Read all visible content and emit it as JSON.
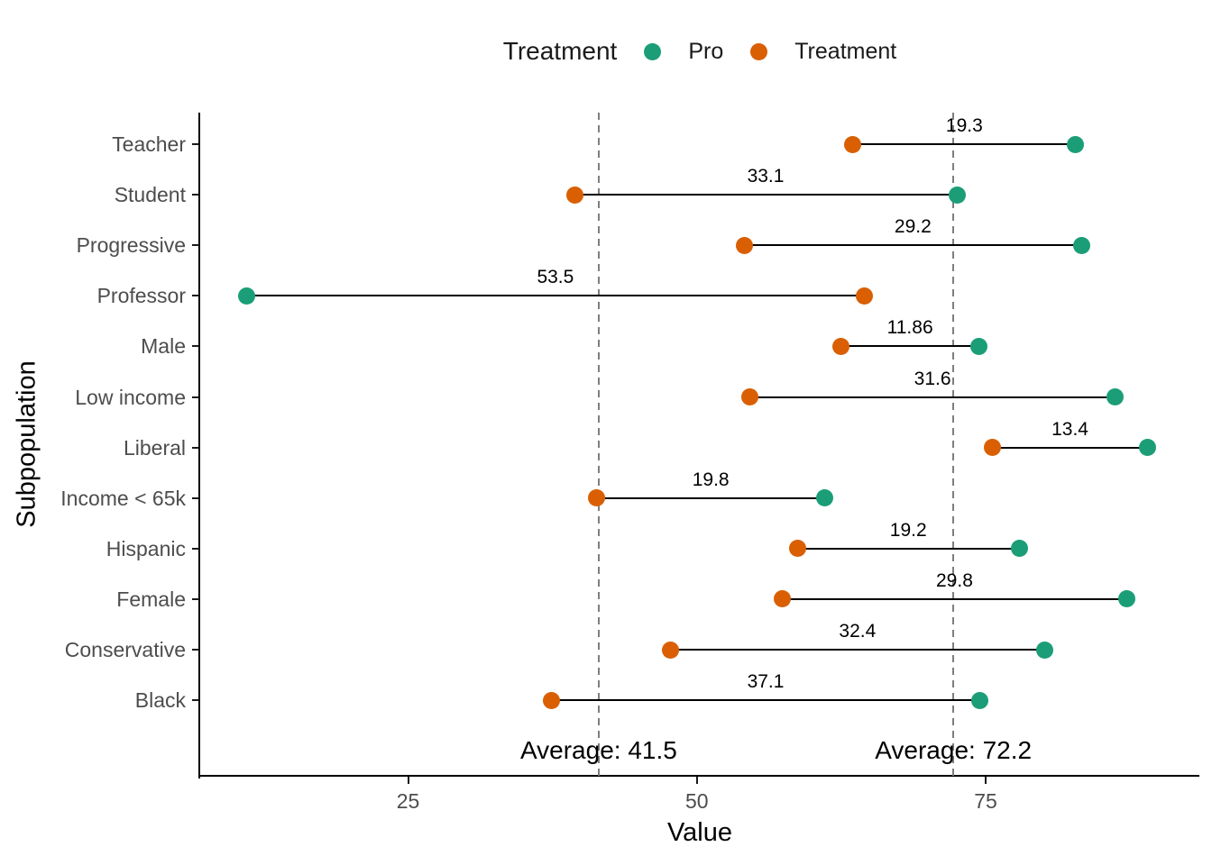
{
  "legend": {
    "title": "Treatment",
    "items": [
      {
        "label": "Pro",
        "color": "#1B9E77"
      },
      {
        "label": "Treatment",
        "color": "#D95F02"
      }
    ]
  },
  "axes": {
    "x_title": "Value",
    "y_title": "Subpopulation",
    "x_tick_labels": [
      "25",
      "50",
      "75"
    ]
  },
  "chart_data": {
    "type": "scatter",
    "subtype": "dumbbell",
    "title": "",
    "xlabel": "Value",
    "ylabel": "Subpopulation",
    "xlim": [
      7,
      93.5
    ],
    "xticks": [
      25,
      50,
      75
    ],
    "grid": false,
    "legend_position": "top-center",
    "categories": [
      "Teacher",
      "Student",
      "Progressive",
      "Professor",
      "Male",
      "Low income",
      "Liberal",
      "Income < 65k",
      "Hispanic",
      "Female",
      "Conservative",
      "Black"
    ],
    "series": [
      {
        "name": "Treatment",
        "color": "#D95F02",
        "values": [
          63.5,
          39.4,
          54.1,
          64.5,
          62.5,
          54.6,
          75.6,
          41.3,
          58.7,
          57.4,
          47.7,
          37.4
        ]
      },
      {
        "name": "Pro",
        "color": "#1B9E77",
        "values": [
          82.8,
          72.5,
          83.3,
          11.0,
          74.4,
          86.2,
          89.0,
          61.1,
          77.9,
          87.2,
          80.1,
          74.5
        ]
      }
    ],
    "diff_labels": [
      "19.3",
      "33.1",
      "29.2",
      "53.5",
      "11.86",
      "31.6",
      "13.4",
      "19.8",
      "19.2",
      "29.8",
      "32.4",
      "37.1"
    ],
    "reference_lines": [
      {
        "x": 41.5,
        "label": "Average: 41.5",
        "style": "dashed",
        "color": "#7e7e7e"
      },
      {
        "x": 72.2,
        "label": "Average: 72.2",
        "style": "dashed",
        "color": "#7e7e7e"
      }
    ],
    "colors": {
      "pro": "#1B9E77",
      "treatment": "#D95F02",
      "segment": "#000000",
      "axis_text": "#4d4d4d",
      "axis_line": "#000000"
    }
  }
}
